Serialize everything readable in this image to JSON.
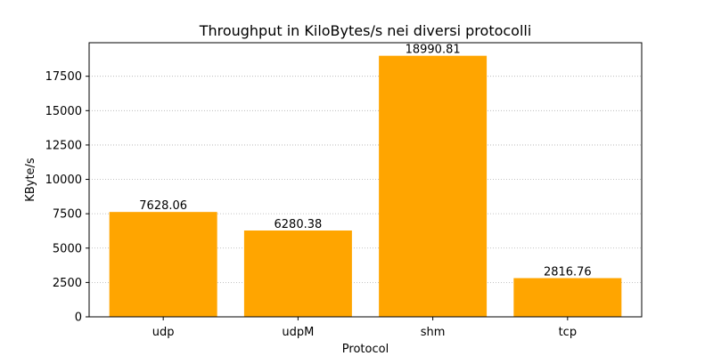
{
  "chart_data": {
    "type": "bar",
    "title": "Throughput in KiloBytes/s nei diversi protocolli",
    "xlabel": "Protocol",
    "ylabel": "KByte/s",
    "categories": [
      "udp",
      "udpM",
      "shm",
      "tcp"
    ],
    "values": [
      7628.06,
      6280.38,
      18990.81,
      2816.76
    ],
    "data_labels": [
      "7628.06",
      "6280.38",
      "18990.81",
      "2816.76"
    ],
    "ylim": [
      0,
      19940
    ],
    "yticks": [
      0,
      2500,
      5000,
      7500,
      10000,
      12500,
      15000,
      17500
    ],
    "grid": "y-dotted",
    "legend": "none",
    "bar_color": "#ffa500",
    "grid_color": "#b0b0b0"
  }
}
